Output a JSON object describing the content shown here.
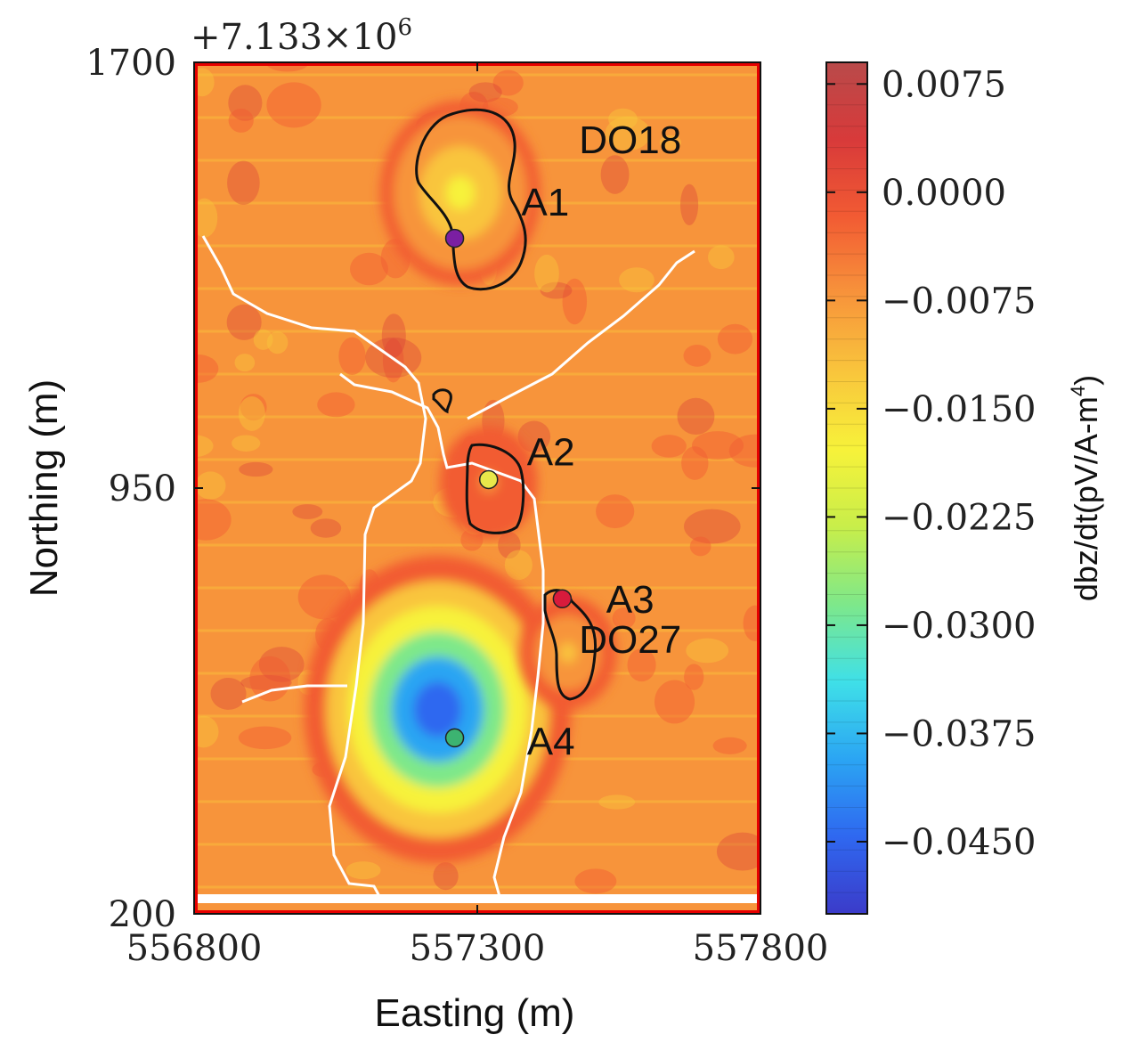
{
  "chart_data": {
    "type": "heatmap",
    "title": "",
    "xlabel": "Easting (m)",
    "ylabel": "Northing (m)",
    "offset_label": "+7.133×10",
    "offset_exponent": "6",
    "xlim": [
      556800,
      557800
    ],
    "ylim": [
      200,
      1700
    ],
    "x_ticks": [
      556800,
      557300,
      557800
    ],
    "x_tick_labels": [
      "556800",
      "557300",
      "557800"
    ],
    "y_ticks": [
      200,
      950,
      1700
    ],
    "y_tick_labels": [
      "200",
      "950",
      "1700"
    ],
    "colorbar": {
      "label": "dbz/dt(pV/A-m",
      "label_exponent": "4",
      "label_close": ")",
      "range": [
        -0.05,
        0.009
      ],
      "ticks": [
        0.0075,
        0.0,
        -0.0075,
        -0.015,
        -0.0225,
        -0.03,
        -0.0375,
        -0.045
      ],
      "tick_labels": [
        "0.0075",
        "0.0000",
        "−0.0075",
        "−0.0150",
        "−0.0225",
        "−0.0300",
        "−0.0375",
        "−0.0450"
      ],
      "colormap": [
        "#3b3bc9",
        "#2f68f0",
        "#2ba5f3",
        "#3fe0e8",
        "#7ee88a",
        "#c8ee4a",
        "#f7f23a",
        "#f9c53c",
        "#f7943b",
        "#f25b33",
        "#d83a3a",
        "#b94a4a"
      ]
    },
    "annotations": [
      {
        "text": "A1",
        "x": 557420,
        "y": 1430
      },
      {
        "text": "A2",
        "x": 557430,
        "y": 990
      },
      {
        "text": "A3",
        "x": 557570,
        "y": 730
      },
      {
        "text": "A4",
        "x": 557430,
        "y": 480
      },
      {
        "text": "DO18",
        "x": 557570,
        "y": 1540,
        "color": "#ffffff"
      },
      {
        "text": "DO27",
        "x": 557570,
        "y": 660,
        "color": "#ffffff"
      }
    ],
    "markers": [
      {
        "x": 557260,
        "y": 1390,
        "color": "#7b1fa2"
      },
      {
        "x": 557320,
        "y": 965,
        "color": "#e8e84a"
      },
      {
        "x": 557450,
        "y": 755,
        "color": "#d81b3c"
      },
      {
        "x": 557260,
        "y": 510,
        "color": "#3cb371"
      }
    ],
    "anomalies": [
      {
        "x": 557270,
        "y": 1470,
        "value": -0.018
      },
      {
        "x": 557230,
        "y": 560,
        "value": -0.045
      },
      {
        "x": 557460,
        "y": 660,
        "value": -0.012
      },
      {
        "x": 557320,
        "y": 960,
        "value": -0.006
      }
    ],
    "colors": {
      "background": "#f7943b",
      "outline": "#111111",
      "roads": "#ffffff",
      "frame": "#e60000"
    }
  }
}
